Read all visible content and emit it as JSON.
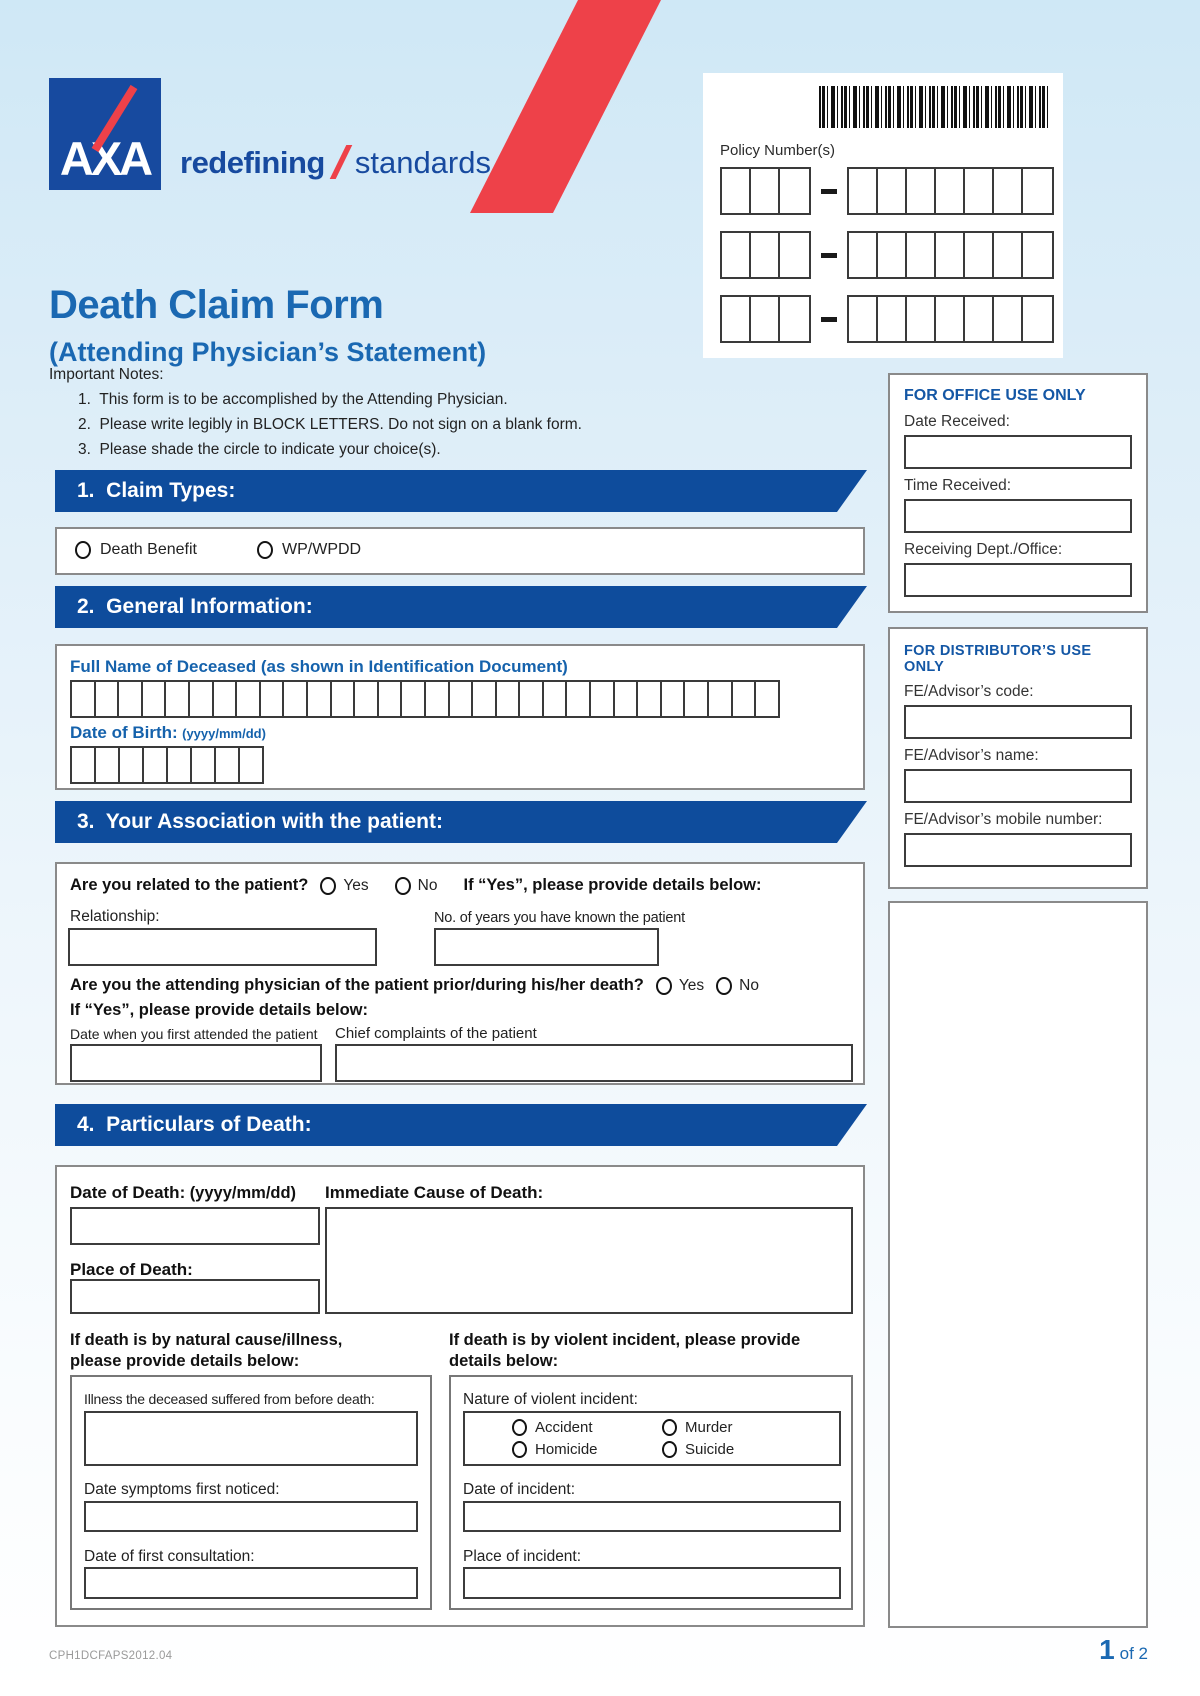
{
  "brand": {
    "logo_text": "AXA",
    "tagline_bold": "redefining",
    "tagline_regular": "standards",
    "accent_red": "#ee4149",
    "banner_blue": "#0e4c9c",
    "title_blue": "#1a68b2"
  },
  "header": {
    "title": "Death Claim Form",
    "subtitle": "(Attending Physician’s Statement)",
    "policy_label": "Policy Number(s)",
    "policy_prefix_cells": 3,
    "policy_suffix_cells": 7
  },
  "notes": {
    "heading": "Important Notes:",
    "items": [
      "1.  This form is to be accomplished by the Attending Physician.",
      "2.  Please write legibly in BLOCK LETTERS. Do not sign on a blank form.",
      "3.  Please shade the circle to indicate your choice(s)."
    ]
  },
  "claim_types": {
    "banner": "1.  Claim Types:",
    "options": [
      "Death Benefit",
      "WP/WPDD"
    ]
  },
  "office_use": {
    "title": "FOR OFFICE USE ONLY",
    "fields": [
      "Date Received:",
      "Time Received:",
      "Receiving Dept./Office:"
    ]
  },
  "general_info": {
    "banner": "2.  General Information:",
    "name_label": "Full Name of Deceased (as shown in Identification Document)",
    "name_cells": 30,
    "dob_label": "Date of Birth:",
    "dob_format": "(yyyy/mm/dd)",
    "dob_cells": 8
  },
  "distributor_use": {
    "title": "FOR DISTRIBUTOR’S USE ONLY",
    "fields": [
      "FE/Advisor’s code:",
      "FE/Advisor’s name:",
      "FE/Advisor’s mobile number:"
    ]
  },
  "association": {
    "banner": "3.  Your Association with the patient:",
    "q1": "Are you related to the patient?",
    "yes": "Yes",
    "no": "No",
    "q1_hint": "If “Yes”, please provide details below:",
    "relationship_label": "Relationship:",
    "years_label": "No. of years you have known the patient",
    "q2": "Are you the attending physician of the patient prior/during his/her death?",
    "q2_hint": "If “Yes”, please provide details below:",
    "first_attended_label": "Date when you first attended the patient",
    "chief_complaints_label": "Chief complaints of the patient"
  },
  "particulars": {
    "banner": "4.  Particulars of Death:",
    "date_of_death_label": "Date of Death:",
    "date_format": "(yyyy/mm/dd)",
    "immediate_cause_label": "Immediate Cause of Death:",
    "place_of_death_label": "Place of Death:",
    "natural_header_line1": "If death is by natural cause/illness,",
    "natural_header_line2": "please provide details below:",
    "violent_header_line1": "If death is by violent incident, please provide",
    "violent_header_line2": "details below:",
    "illness_label": "Illness the deceased suffered from before death:",
    "symptoms_label": "Date symptoms first noticed:",
    "consultation_label": "Date of first consultation:",
    "nature_label": "Nature of violent incident:",
    "nature_options": [
      "Accident",
      "Murder",
      "Homicide",
      "Suicide"
    ],
    "incident_date_label": "Date of incident:",
    "incident_place_label": "Place of incident:"
  },
  "footer": {
    "form_code": "CPH1DCFAPS2012.04",
    "page_number": "1",
    "page_number_suffix": "of 2"
  }
}
